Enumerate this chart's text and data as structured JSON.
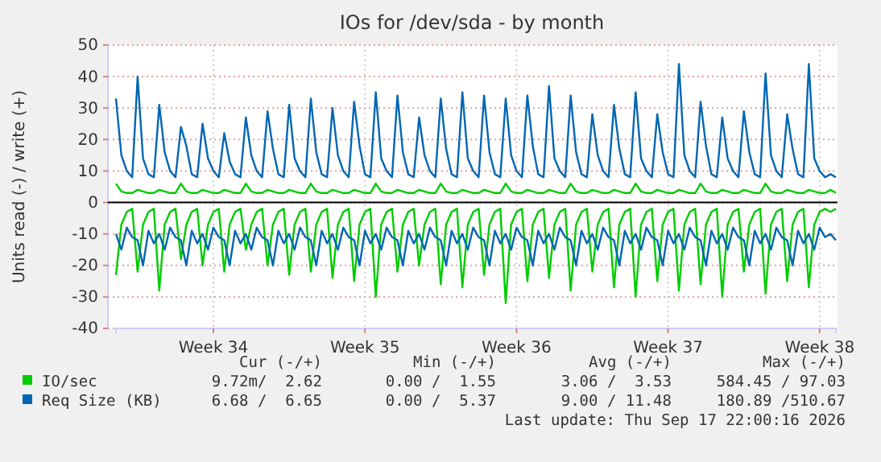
{
  "chart_data": {
    "type": "line",
    "title": "IOs for /dev/sda - by month",
    "ylabel": "Units read (-) / write (+)",
    "categories": [
      null,
      null,
      null,
      null,
      null,
      null,
      null,
      null,
      null,
      null,
      null,
      null,
      null,
      null,
      null,
      null,
      null,
      null,
      "Week 34",
      null,
      null,
      null,
      null,
      null,
      null,
      null,
      null,
      null,
      null,
      null,
      null,
      null,
      null,
      null,
      null,
      null,
      null,
      null,
      null,
      null,
      null,
      null,
      null,
      null,
      null,
      null,
      "Week 35",
      null,
      null,
      null,
      null,
      null,
      null,
      null,
      null,
      null,
      null,
      null,
      null,
      null,
      null,
      null,
      null,
      null,
      null,
      null,
      null,
      null,
      null,
      null,
      null,
      null,
      null,
      null,
      "Week 36",
      null,
      null,
      null,
      null,
      null,
      null,
      null,
      null,
      null,
      null,
      null,
      null,
      null,
      null,
      null,
      null,
      null,
      null,
      null,
      null,
      null,
      null,
      null,
      null,
      null,
      null,
      null,
      "Week 37",
      null,
      null,
      null,
      null,
      null,
      null,
      null,
      null,
      null,
      null,
      null,
      null,
      null,
      null,
      null,
      null,
      null,
      null,
      null,
      null,
      null,
      null,
      null,
      null,
      null,
      null,
      null,
      "Week 38",
      null,
      null,
      null
    ],
    "series": [
      {
        "name": "IO/sec",
        "color": "#00cc00",
        "values": [
          6,
          3.5,
          3,
          3,
          4,
          3.5,
          3,
          3,
          4,
          3.5,
          3,
          3,
          6,
          3.5,
          3,
          3,
          4,
          3.5,
          3,
          3,
          4,
          3.5,
          3,
          3,
          6,
          3.5,
          3,
          3,
          4,
          3.5,
          3,
          3,
          4,
          3.5,
          3,
          3,
          6,
          3.5,
          3,
          3,
          4,
          3.5,
          3,
          3,
          4,
          3.5,
          3,
          3,
          6,
          3.5,
          3,
          3,
          4,
          3.5,
          3,
          3,
          4,
          3.5,
          3,
          3,
          6,
          3.5,
          3,
          3,
          4,
          3.5,
          3,
          3,
          4,
          3.5,
          3,
          3,
          6,
          3.5,
          3,
          3,
          4,
          3.5,
          3,
          3,
          4,
          3.5,
          3,
          3,
          6,
          3.5,
          3,
          3,
          4,
          3.5,
          3,
          3,
          4,
          3.5,
          3,
          3,
          6,
          3.5,
          3,
          3,
          4,
          3.5,
          3,
          3,
          4,
          3.5,
          3,
          3,
          6,
          3.5,
          3,
          3,
          4,
          3.5,
          3,
          3,
          4,
          3.5,
          3,
          3,
          6,
          3.5,
          3,
          3,
          4,
          3.5,
          3,
          3,
          4,
          3.5,
          3,
          3,
          4,
          3
        ]
      },
      {
        "color": "#00cc00",
        "values": [
          -23,
          -7,
          -3,
          -2,
          -22,
          -7,
          -3,
          -2,
          -28,
          -7,
          -3,
          -2,
          -18,
          -7,
          -3,
          -2,
          -20,
          -7,
          -3,
          -2,
          -22,
          -7,
          -3,
          -2,
          -15,
          -7,
          -3,
          -2,
          -20,
          -7,
          -3,
          -2,
          -23,
          -7,
          -3,
          -2,
          -22,
          -7,
          -3,
          -2,
          -24,
          -7,
          -3,
          -2,
          -25,
          -7,
          -3,
          -2,
          -30,
          -7,
          -3,
          -2,
          -22,
          -7,
          -3,
          -2,
          -20,
          -7,
          -3,
          -2,
          -26,
          -7,
          -3,
          -2,
          -27,
          -7,
          -3,
          -2,
          -23,
          -7,
          -3,
          -2,
          -32,
          -7,
          -3,
          -2,
          -25,
          -7,
          -3,
          -2,
          -24,
          -7,
          -3,
          -2,
          -28,
          -7,
          -3,
          -2,
          -22,
          -7,
          -3,
          -2,
          -27,
          -7,
          -3,
          -2,
          -30,
          -7,
          -3,
          -2,
          -25,
          -7,
          -3,
          -2,
          -28,
          -7,
          -3,
          -2,
          -26,
          -7,
          -3,
          -2,
          -30,
          -7,
          -3,
          -2,
          -22,
          -7,
          -3,
          -2,
          -29,
          -7,
          -3,
          -2,
          -25,
          -7,
          -3,
          -2,
          -27,
          -7,
          -3,
          -2,
          -3,
          -2
        ]
      },
      {
        "name": "Req Size (KB)",
        "color": "#0066b3",
        "values": [
          33,
          15,
          10,
          8,
          40,
          14,
          9,
          8,
          31,
          16,
          10,
          8,
          24,
          18,
          9,
          8,
          25,
          14,
          10,
          8,
          22,
          13,
          9,
          8,
          27,
          15,
          10,
          8,
          29,
          17,
          9,
          8,
          31,
          14,
          10,
          8,
          33,
          16,
          9,
          8,
          30,
          15,
          10,
          8,
          32,
          18,
          9,
          8,
          35,
          14,
          10,
          8,
          34,
          16,
          9,
          8,
          27,
          15,
          10,
          8,
          33,
          17,
          9,
          8,
          35,
          14,
          10,
          8,
          34,
          16,
          9,
          8,
          33,
          15,
          10,
          8,
          34,
          18,
          9,
          8,
          37,
          14,
          10,
          8,
          34,
          16,
          9,
          8,
          28,
          15,
          10,
          8,
          31,
          17,
          9,
          8,
          35,
          14,
          10,
          8,
          28,
          16,
          9,
          8,
          44,
          15,
          10,
          8,
          32,
          18,
          9,
          8,
          27,
          14,
          10,
          8,
          29,
          16,
          9,
          8,
          41,
          15,
          10,
          8,
          28,
          17,
          9,
          8,
          44,
          14,
          10,
          8,
          9,
          8
        ]
      },
      {
        "color": "#0066b3",
        "values": [
          -10,
          -15,
          -8,
          -11,
          -12,
          -20,
          -9,
          -13,
          -10,
          -15,
          -8,
          -11,
          -12,
          -20,
          -9,
          -13,
          -10,
          -15,
          -8,
          -11,
          -12,
          -20,
          -9,
          -13,
          -10,
          -15,
          -8,
          -11,
          -12,
          -20,
          -9,
          -13,
          -10,
          -15,
          -8,
          -11,
          -12,
          -20,
          -9,
          -13,
          -10,
          -15,
          -8,
          -11,
          -12,
          -20,
          -9,
          -13,
          -10,
          -15,
          -8,
          -11,
          -12,
          -20,
          -9,
          -13,
          -10,
          -15,
          -8,
          -11,
          -12,
          -20,
          -9,
          -13,
          -10,
          -15,
          -8,
          -11,
          -12,
          -20,
          -9,
          -13,
          -10,
          -15,
          -8,
          -11,
          -12,
          -20,
          -9,
          -13,
          -10,
          -15,
          -8,
          -11,
          -12,
          -20,
          -9,
          -13,
          -10,
          -15,
          -8,
          -11,
          -12,
          -20,
          -9,
          -13,
          -10,
          -15,
          -8,
          -11,
          -12,
          -20,
          -9,
          -13,
          -10,
          -15,
          -8,
          -11,
          -12,
          -20,
          -9,
          -13,
          -10,
          -15,
          -8,
          -11,
          -12,
          -20,
          -9,
          -13,
          -10,
          -15,
          -8,
          -11,
          -12,
          -20,
          -9,
          -13,
          -10,
          -15,
          -8,
          -11,
          -10,
          -12
        ]
      }
    ],
    "ylim": [
      -40,
      50
    ],
    "yticks": [
      -40,
      -30,
      -20,
      -10,
      0,
      10,
      20,
      30,
      40,
      50
    ],
    "grid": true,
    "legend": "bottom",
    "ref_lines": [
      {
        "axis": "y",
        "value": 0,
        "color": "#000000"
      }
    ],
    "annotations": [
      "Cur (-/+)",
      "Min (-/+)",
      "Avg (-/+)",
      "Max (-/+)",
      "9.72m/  2.62",
      "0.00 /  1.55",
      "3.06 /  3.53",
      "584.45 / 97.03",
      "6.68 /  6.65",
      "0.00 /  5.37",
      "9.00 / 11.48",
      "180.89 /510.67",
      "Last update: Thu Sep 17 22:00:16 2026"
    ]
  }
}
